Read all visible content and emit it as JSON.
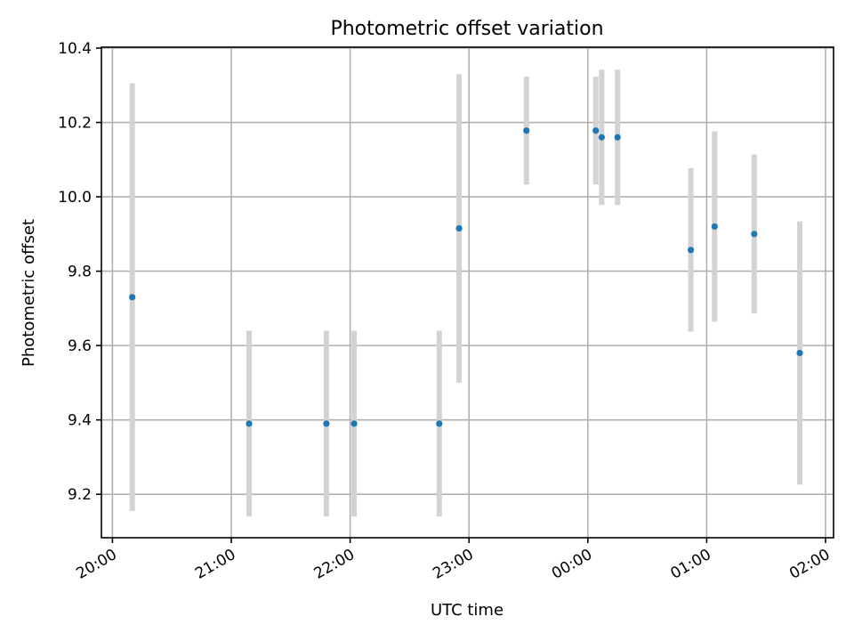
{
  "chart_data": {
    "type": "scatter",
    "title": "Photometric offset variation",
    "xlabel": "UTC time",
    "ylabel": "Photometric offset",
    "grid": true,
    "xlim": [
      "19:56",
      "02:04"
    ],
    "ylim": [
      9.08,
      10.4
    ],
    "x_ticks": [
      {
        "label": "20:00",
        "value": "20:00"
      },
      {
        "label": "21:00",
        "value": "21:00"
      },
      {
        "label": "22:00",
        "value": "22:00"
      },
      {
        "label": "23:00",
        "value": "23:00"
      },
      {
        "label": "00:00",
        "value": "00:00"
      },
      {
        "label": "01:00",
        "value": "01:00"
      },
      {
        "label": "02:00",
        "value": "02:00"
      }
    ],
    "y_ticks": [
      {
        "label": "9.2",
        "value": 9.2
      },
      {
        "label": "9.4",
        "value": 9.4
      },
      {
        "label": "9.6",
        "value": 9.6
      },
      {
        "label": "9.8",
        "value": 9.8
      },
      {
        "label": "10.0",
        "value": 10.0
      },
      {
        "label": "10.2",
        "value": 10.2
      },
      {
        "label": "10.4",
        "value": 10.4
      }
    ],
    "points": [
      {
        "x": "20:10",
        "y": 9.73,
        "ylow": 9.155,
        "yhigh": 10.305
      },
      {
        "x": "21:09",
        "y": 9.39,
        "ylow": 9.14,
        "yhigh": 9.64
      },
      {
        "x": "21:48",
        "y": 9.39,
        "ylow": 9.14,
        "yhigh": 9.64
      },
      {
        "x": "22:02",
        "y": 9.39,
        "ylow": 9.14,
        "yhigh": 9.64
      },
      {
        "x": "22:45",
        "y": 9.39,
        "ylow": 9.14,
        "yhigh": 9.64
      },
      {
        "x": "22:55",
        "y": 9.915,
        "ylow": 9.5,
        "yhigh": 10.33
      },
      {
        "x": "23:29",
        "y": 10.178,
        "ylow": 10.033,
        "yhigh": 10.323
      },
      {
        "x": "00:04",
        "y": 10.178,
        "ylow": 10.033,
        "yhigh": 10.323
      },
      {
        "x": "00:07",
        "y": 10.16,
        "ylow": 9.978,
        "yhigh": 10.342
      },
      {
        "x": "00:15",
        "y": 10.16,
        "ylow": 9.978,
        "yhigh": 10.342
      },
      {
        "x": "00:52",
        "y": 9.857,
        "ylow": 9.637,
        "yhigh": 10.077
      },
      {
        "x": "01:04",
        "y": 9.92,
        "ylow": 9.664,
        "yhigh": 10.176
      },
      {
        "x": "01:24",
        "y": 9.9,
        "ylow": 9.686,
        "yhigh": 10.114
      },
      {
        "x": "01:47",
        "y": 9.58,
        "ylow": 9.226,
        "yhigh": 9.934
      }
    ],
    "colors": {
      "point": "#1f77b4",
      "errorbar": "#d3d3d3",
      "grid": "#b0b0b0"
    }
  }
}
